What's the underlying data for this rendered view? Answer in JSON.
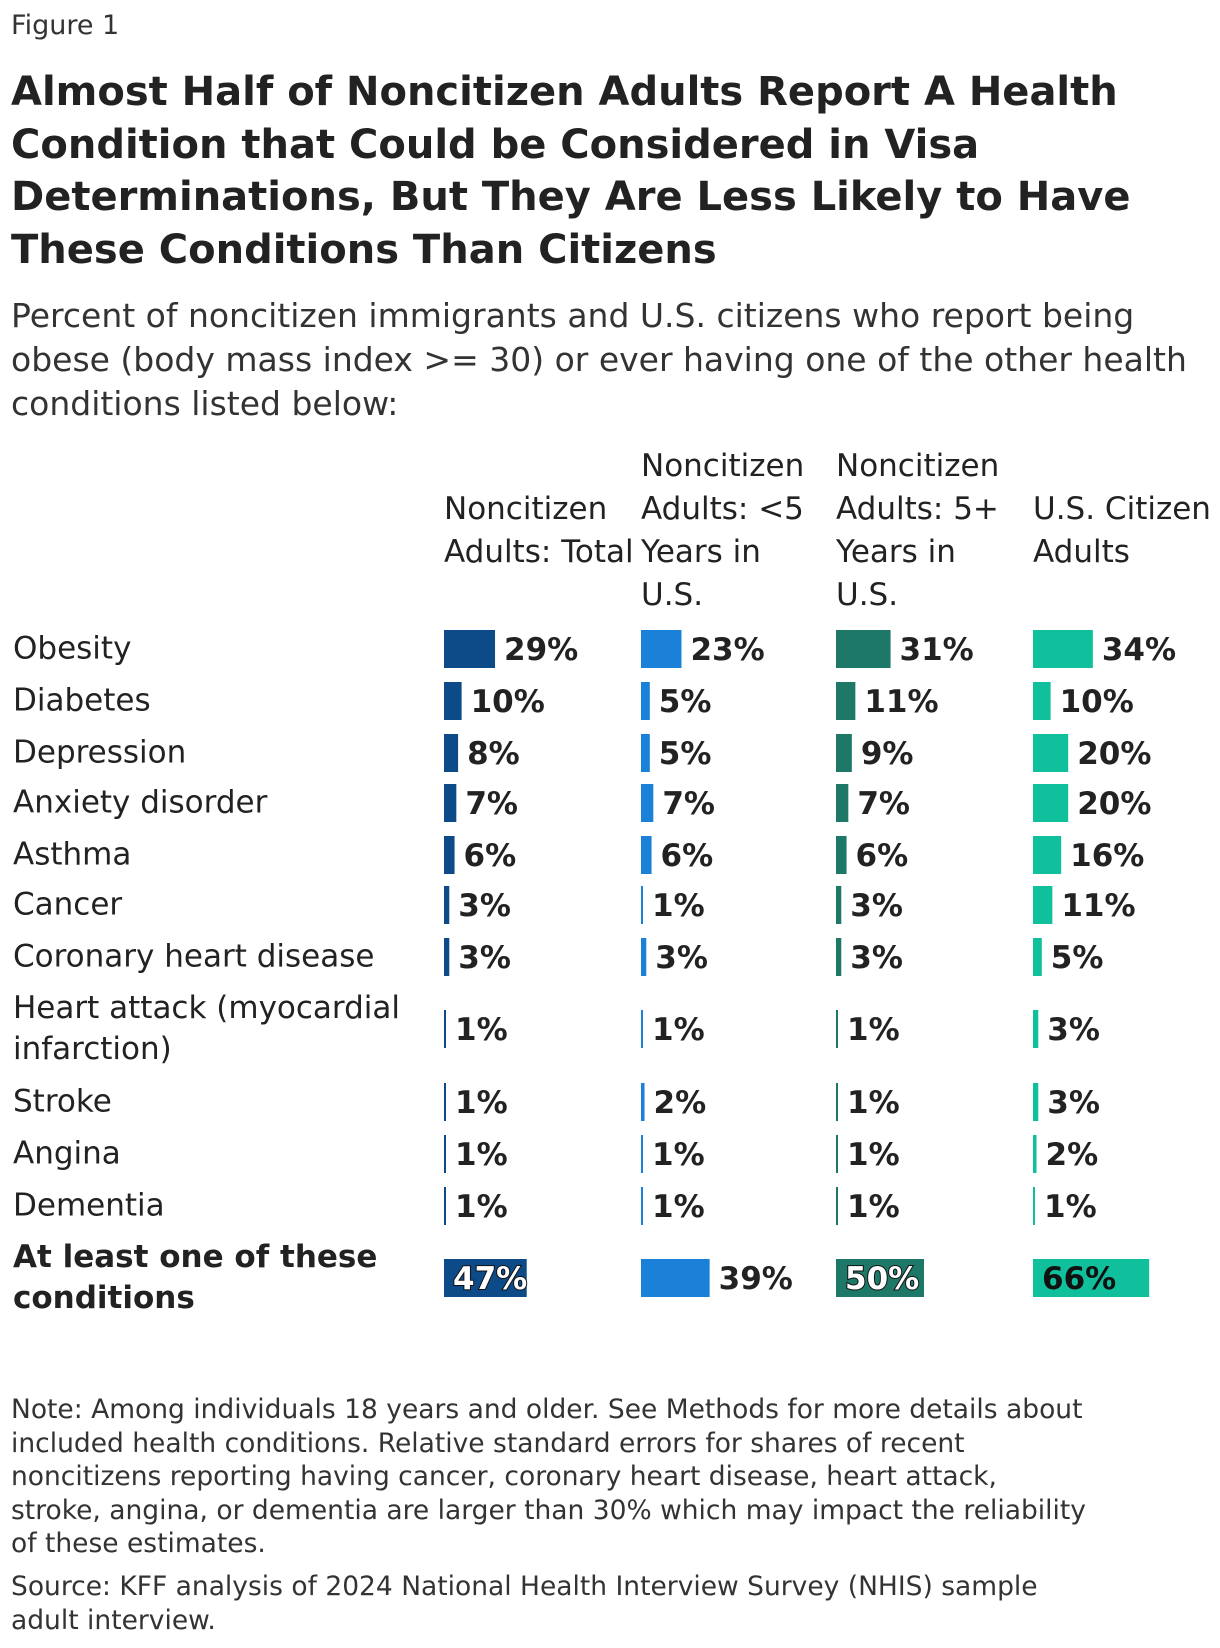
{
  "chart_data": {
    "type": "bar",
    "figure_label": "Figure 1",
    "title": "Almost Half of Noncitizen Adults Report A Health Condition that Could be Considered in Visa Determinations, But They Are Less Likely to Have These Conditions Than Citizens",
    "subtitle": "Percent of noncitizen immigrants and U.S. citizens who report being obese (body mass index >= 30) or ever having one of the other health conditions listed below:",
    "categories": [
      "Obesity",
      "Diabetes",
      "Depression",
      "Anxiety disorder",
      "Asthma",
      "Cancer",
      "Coronary heart disease",
      "Heart attack (myocardial infarction)",
      "Stroke",
      "Angina",
      "Dementia",
      "At least one of these conditions"
    ],
    "series": [
      {
        "name": "Noncitizen Adults: Total",
        "color": "#0c4a88",
        "values": [
          29,
          10,
          8,
          7,
          6,
          3,
          3,
          1,
          1,
          1,
          1,
          47
        ],
        "value_labels": [
          "29%",
          "10%",
          "8%",
          "7%",
          "6%",
          "3%",
          "3%",
          "1%",
          "1%",
          "1%",
          "1%",
          "47%"
        ]
      },
      {
        "name": "Noncitizen Adults: <5 Years in U.S.",
        "color": "#1b80d7",
        "values": [
          23,
          5,
          5,
          7,
          6,
          1,
          3,
          1,
          2,
          1,
          1,
          39
        ],
        "value_labels": [
          "23%",
          "5%",
          "5%",
          "7%",
          "6%",
          "1%",
          "3%",
          "1%",
          "2%",
          "1%",
          "1%",
          "39%"
        ]
      },
      {
        "name": "Noncitizen Adults: 5+ Years in U.S.",
        "color": "#1d7868",
        "values": [
          31,
          11,
          9,
          7,
          6,
          3,
          3,
          1,
          1,
          1,
          1,
          50
        ],
        "value_labels": [
          "31%",
          "11%",
          "9%",
          "7%",
          "6%",
          "3%",
          "3%",
          "1%",
          "1%",
          "1%",
          "1%",
          "50%"
        ]
      },
      {
        "name": "U.S. Citizen Adults",
        "color": "#10bf9b",
        "values": [
          34,
          10,
          20,
          20,
          16,
          11,
          5,
          3,
          3,
          2,
          1,
          66
        ],
        "value_labels": [
          "34%",
          "10%",
          "20%",
          "20%",
          "16%",
          "11%",
          "5%",
          "3%",
          "3%",
          "2%",
          "1%",
          "66%"
        ]
      }
    ],
    "note": "Note: Among individuals 18 years and older. See Methods for more details about included health conditions. Relative standard errors for shares of recent noncitizens reporting having cancer, coronary heart disease, heart attack, stroke, angina, or dementia are larger than 30% which may impact the reliability of these estimates.",
    "source": "Source: KFF analysis of 2024 National Health Interview Survey (NHIS) sample adult interview."
  }
}
